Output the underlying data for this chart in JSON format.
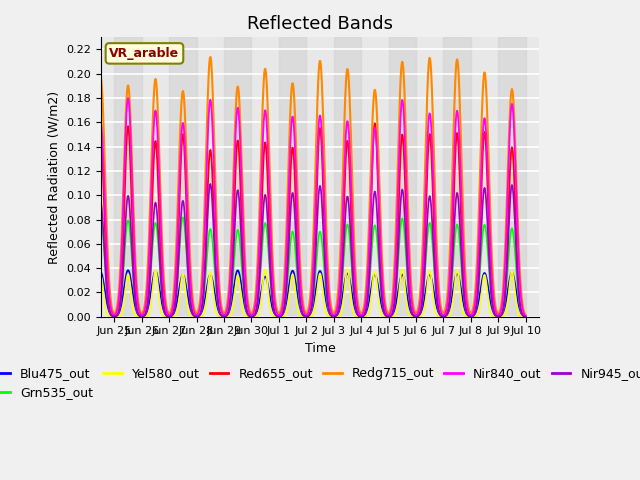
{
  "title": "Reflected Bands",
  "ylabel": "Reflected Radiation (W/m2)",
  "xlabel": "Time",
  "annotation": "VR_arable",
  "ylim": [
    0,
    0.23
  ],
  "yticks": [
    0.0,
    0.02,
    0.04,
    0.06,
    0.08,
    0.1,
    0.12,
    0.14,
    0.16,
    0.18,
    0.2,
    0.22
  ],
  "series": {
    "Blu475_out": {
      "color": "#0000FF",
      "peak": 0.039,
      "base": 0.0
    },
    "Grn535_out": {
      "color": "#00FF00",
      "peak": 0.082,
      "base": 0.0
    },
    "Yel580_out": {
      "color": "#FFFF00",
      "peak": 0.038,
      "base": 0.0
    },
    "Red655_out": {
      "color": "#FF0000",
      "peak": 0.16,
      "base": 0.0
    },
    "Redg715_out": {
      "color": "#FF8800",
      "peak": 0.215,
      "base": 0.0
    },
    "Nir840_out": {
      "color": "#FF00FF",
      "peak": 0.18,
      "base": 0.0
    },
    "Nir945_out": {
      "color": "#9900CC",
      "peak": 0.11,
      "base": 0.0
    }
  },
  "n_days": 16,
  "points_per_day": 48,
  "background_color": "#e8e8e8",
  "grid_color": "#ffffff",
  "legend_fontsize": 9,
  "title_fontsize": 13
}
